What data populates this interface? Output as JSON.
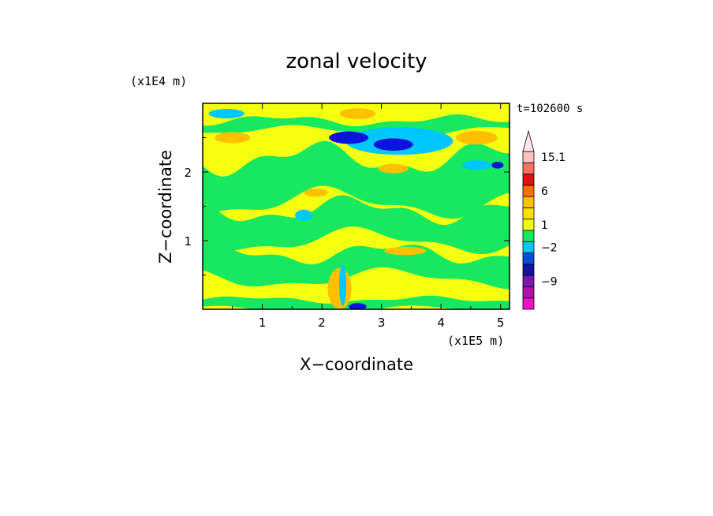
{
  "chart_data": {
    "type": "heatmap",
    "title": "zonal velocity",
    "xlabel": "X−coordinate",
    "ylabel": "Z−coordinate",
    "x_unit": "(x1E5 m)",
    "y_unit": "(x1E4 m)",
    "time_label": "t=102600 s",
    "xlim": [
      0,
      5.15
    ],
    "ylim": [
      0,
      3.0
    ],
    "x_ticks": [
      1,
      2,
      3,
      4,
      5
    ],
    "y_ticks": [
      1,
      2
    ],
    "colorbar": {
      "colors": [
        "#f011c8",
        "#b40fa8",
        "#7a1aa8",
        "#1414a0",
        "#0050e0",
        "#00c8ff",
        "#18e860",
        "#f5ff10",
        "#ffe100",
        "#ffc000",
        "#ff6e00",
        "#e01010",
        "#ff7060",
        "#ffc0c0"
      ],
      "tick_labels": [
        "−9",
        "−2",
        "1",
        "6",
        "15.1"
      ],
      "tick_values": [
        -9,
        -2,
        1,
        6,
        15.1
      ],
      "extend": "max"
    },
    "field": {
      "background_color": "#f5ff10",
      "bands": [
        {
          "color": "#18e860",
          "z_bottom": 0.0,
          "z_top": 0.14,
          "z_amp": 0.04
        },
        {
          "color": "#18e860",
          "z_bottom": 0.45,
          "z_top": 0.82,
          "z_amp": 0.12
        },
        {
          "color": "#18e860",
          "z_bottom": 1.0,
          "z_top": 1.45,
          "z_amp": 0.15
        },
        {
          "color": "#18e860",
          "z_bottom": 1.55,
          "z_top": 2.2,
          "z_amp": 0.18
        },
        {
          "color": "#18e860",
          "z_bottom": 2.6,
          "z_top": 2.75,
          "z_amp": 0.06
        }
      ],
      "blobs": [
        {
          "color": "#ffc000",
          "x": 0.5,
          "z": 2.5,
          "rx": 0.3,
          "rz": 0.08
        },
        {
          "color": "#ffc000",
          "x": 2.6,
          "z": 2.85,
          "rx": 0.3,
          "rz": 0.08
        },
        {
          "color": "#ffc000",
          "x": 4.6,
          "z": 2.5,
          "rx": 0.35,
          "rz": 0.1
        },
        {
          "color": "#ffc000",
          "x": 1.9,
          "z": 1.7,
          "rx": 0.2,
          "rz": 0.06
        },
        {
          "color": "#ffc000",
          "x": 3.2,
          "z": 2.05,
          "rx": 0.25,
          "rz": 0.07
        },
        {
          "color": "#ffc000",
          "x": 3.4,
          "z": 0.85,
          "rx": 0.35,
          "rz": 0.06
        },
        {
          "color": "#ffc000",
          "x": 2.3,
          "z": 0.3,
          "rx": 0.2,
          "rz": 0.3
        },
        {
          "color": "#00c8ff",
          "x": 3.3,
          "z": 2.45,
          "rx": 0.9,
          "rz": 0.2
        },
        {
          "color": "#00c8ff",
          "x": 0.4,
          "z": 2.85,
          "rx": 0.3,
          "rz": 0.07
        },
        {
          "color": "#00c8ff",
          "x": 1.7,
          "z": 1.37,
          "rx": 0.15,
          "rz": 0.08
        },
        {
          "color": "#00c8ff",
          "x": 4.6,
          "z": 2.1,
          "rx": 0.25,
          "rz": 0.07
        },
        {
          "color": "#00c8ff",
          "x": 2.35,
          "z": 0.35,
          "rx": 0.06,
          "rz": 0.3
        },
        {
          "color": "#0a14dc",
          "x": 2.45,
          "z": 2.5,
          "rx": 0.33,
          "rz": 0.09
        },
        {
          "color": "#0a14dc",
          "x": 3.2,
          "z": 2.4,
          "rx": 0.33,
          "rz": 0.09
        },
        {
          "color": "#0a14dc",
          "x": 4.95,
          "z": 2.1,
          "rx": 0.1,
          "rz": 0.05
        },
        {
          "color": "#0a14dc",
          "x": 2.6,
          "z": 0.04,
          "rx": 0.15,
          "rz": 0.05
        }
      ]
    }
  }
}
